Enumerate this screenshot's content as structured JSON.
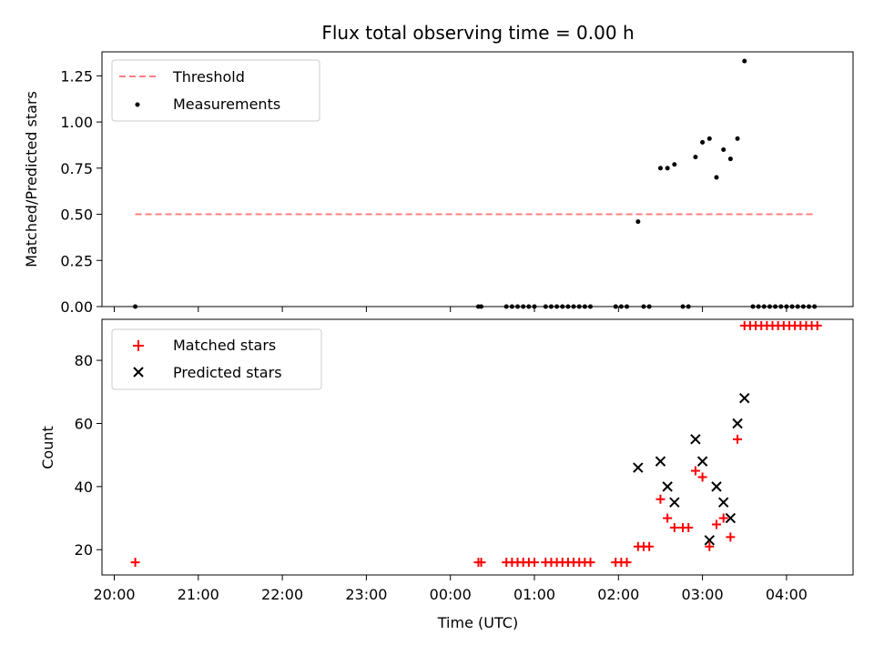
{
  "chart_data": [
    {
      "type": "scatter",
      "title": "Flux total observing time = 0.00 h",
      "xlabel": "",
      "ylabel": "Matched/Predicted stars",
      "ylim": [
        0,
        1.38
      ],
      "yticks": [
        "0.00",
        "0.25",
        "0.50",
        "0.75",
        "1.00",
        "1.25"
      ],
      "legend_position": "upper-left",
      "threshold": {
        "name": "Threshold",
        "value": 0.5,
        "x_start": "20:15",
        "x_end": "04:20",
        "color": "#ff7f7f",
        "style": "dashed"
      },
      "series": [
        {
          "name": "Measurements",
          "color": "#000000",
          "marker": "dot",
          "points": [
            [
              "20:15",
              0
            ],
            [
              "00:20",
              0
            ],
            [
              "00:22",
              0
            ],
            [
              "00:40",
              0
            ],
            [
              "00:44",
              0
            ],
            [
              "00:48",
              0
            ],
            [
              "00:52",
              0
            ],
            [
              "00:56",
              0
            ],
            [
              "01:00",
              0
            ],
            [
              "01:08",
              0
            ],
            [
              "01:12",
              0
            ],
            [
              "01:16",
              0
            ],
            [
              "01:20",
              0
            ],
            [
              "01:24",
              0
            ],
            [
              "01:28",
              0
            ],
            [
              "01:32",
              0
            ],
            [
              "01:36",
              0
            ],
            [
              "01:40",
              0
            ],
            [
              "01:58",
              0
            ],
            [
              "02:02",
              0
            ],
            [
              "02:06",
              0
            ],
            [
              "02:14",
              0.46
            ],
            [
              "02:18",
              0
            ],
            [
              "02:22",
              0
            ],
            [
              "02:30",
              0.75
            ],
            [
              "02:35",
              0.75
            ],
            [
              "02:40",
              0.77
            ],
            [
              "02:46",
              0
            ],
            [
              "02:50",
              0
            ],
            [
              "02:55",
              0.81
            ],
            [
              "03:00",
              0.89
            ],
            [
              "03:05",
              0.91
            ],
            [
              "03:10",
              0.7
            ],
            [
              "03:15",
              0.85
            ],
            [
              "03:20",
              0.8
            ],
            [
              "03:25",
              0.91
            ],
            [
              "03:30",
              1.33
            ],
            [
              "03:36",
              0
            ],
            [
              "03:40",
              0
            ],
            [
              "03:44",
              0
            ],
            [
              "03:48",
              0
            ],
            [
              "03:52",
              0
            ],
            [
              "03:56",
              0
            ],
            [
              "04:00",
              0
            ],
            [
              "04:04",
              0
            ],
            [
              "04:08",
              0
            ],
            [
              "04:12",
              0
            ],
            [
              "04:16",
              0
            ],
            [
              "04:20",
              0
            ]
          ]
        }
      ]
    },
    {
      "type": "scatter",
      "title": "",
      "xlabel": "Time (UTC)",
      "ylabel": "Count",
      "ylim": [
        12,
        93
      ],
      "yticks": [
        "20",
        "40",
        "60",
        "80"
      ],
      "xticks": [
        "20:00",
        "21:00",
        "22:00",
        "23:00",
        "00:00",
        "01:00",
        "02:00",
        "03:00",
        "04:00"
      ],
      "legend_position": "upper-left",
      "series": [
        {
          "name": "Matched stars",
          "color": "#ff0000",
          "marker": "plus",
          "points": [
            [
              "20:15",
              16
            ],
            [
              "00:20",
              16
            ],
            [
              "00:22",
              16
            ],
            [
              "00:40",
              16
            ],
            [
              "00:44",
              16
            ],
            [
              "00:48",
              16
            ],
            [
              "00:52",
              16
            ],
            [
              "00:56",
              16
            ],
            [
              "01:00",
              16
            ],
            [
              "01:08",
              16
            ],
            [
              "01:12",
              16
            ],
            [
              "01:16",
              16
            ],
            [
              "01:20",
              16
            ],
            [
              "01:24",
              16
            ],
            [
              "01:28",
              16
            ],
            [
              "01:32",
              16
            ],
            [
              "01:36",
              16
            ],
            [
              "01:40",
              16
            ],
            [
              "01:58",
              16
            ],
            [
              "02:02",
              16
            ],
            [
              "02:06",
              16
            ],
            [
              "02:14",
              21
            ],
            [
              "02:18",
              21
            ],
            [
              "02:22",
              21
            ],
            [
              "02:30",
              36
            ],
            [
              "02:35",
              30
            ],
            [
              "02:40",
              27
            ],
            [
              "02:46",
              27
            ],
            [
              "02:50",
              27
            ],
            [
              "02:55",
              45
            ],
            [
              "03:00",
              43
            ],
            [
              "03:05",
              21
            ],
            [
              "03:10",
              28
            ],
            [
              "03:15",
              30
            ],
            [
              "03:20",
              24
            ],
            [
              "03:25",
              55
            ],
            [
              "03:30",
              91
            ],
            [
              "03:34",
              91
            ],
            [
              "03:38",
              91
            ],
            [
              "03:42",
              91
            ],
            [
              "03:46",
              91
            ],
            [
              "03:50",
              91
            ],
            [
              "03:54",
              91
            ],
            [
              "03:58",
              91
            ],
            [
              "04:02",
              91
            ],
            [
              "04:06",
              91
            ],
            [
              "04:10",
              91
            ],
            [
              "04:14",
              91
            ],
            [
              "04:18",
              91
            ],
            [
              "04:22",
              91
            ]
          ]
        },
        {
          "name": "Predicted stars",
          "color": "#000000",
          "marker": "x",
          "points": [
            [
              "02:14",
              46
            ],
            [
              "02:30",
              48
            ],
            [
              "02:35",
              40
            ],
            [
              "02:40",
              35
            ],
            [
              "02:55",
              55
            ],
            [
              "03:00",
              48
            ],
            [
              "03:05",
              23
            ],
            [
              "03:10",
              40
            ],
            [
              "03:15",
              35
            ],
            [
              "03:20",
              30
            ],
            [
              "03:25",
              60
            ],
            [
              "03:30",
              68
            ]
          ]
        }
      ]
    }
  ]
}
